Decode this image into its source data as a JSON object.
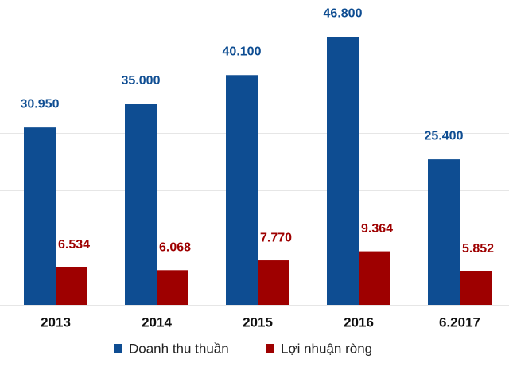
{
  "chart_data": {
    "type": "bar",
    "categories": [
      "2013",
      "2014",
      "2015",
      "2016",
      "6.2017"
    ],
    "series": [
      {
        "name": "Doanh thu thuần",
        "color": "#0e4d92",
        "values": [
          30950,
          35000,
          40100,
          46800,
          25400
        ],
        "value_labels": [
          "30.950",
          "35.000",
          "40.100",
          "46.800",
          "25.400"
        ]
      },
      {
        "name": "Lợi nhuận ròng",
        "color": "#9e0000",
        "values": [
          6534,
          6068,
          7770,
          9364,
          5852
        ],
        "value_labels": [
          "6.534",
          "6.068",
          "7.770",
          "9.364",
          "5.852"
        ]
      }
    ],
    "ylim": [
      0,
      50000
    ],
    "yticks": [
      0,
      10000,
      20000,
      30000,
      40000
    ],
    "grid": true
  }
}
